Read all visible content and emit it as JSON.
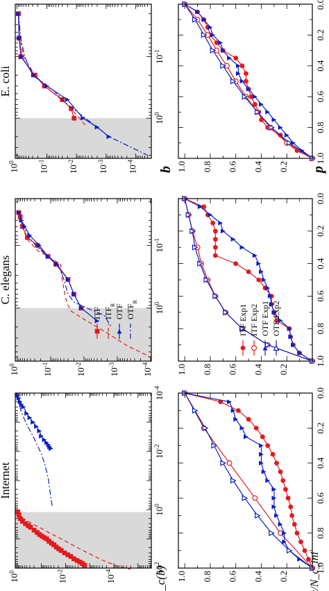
{
  "figure": {
    "rotated": "90deg counter-clockwise",
    "xlabel_top": "b",
    "xlabel_bottom": "p",
    "ylabel_top": "P_c(b)",
    "ylabel_bottom": "N_c/N_c_ini"
  },
  "chart_data": [
    {
      "id": "internet-top",
      "type": "line",
      "title": "Internet",
      "xlabel": "b",
      "ylabel": "P_c(b)",
      "xscale": "log",
      "yscale": "log",
      "xlim": [
        0.0001,
        100
      ],
      "ylim": [
        2.8e-06,
        1.2
      ],
      "xticks": [
        "10^-4",
        "10^-2",
        "10^0",
        "10^2"
      ],
      "yticks": [
        "10^0",
        "10^-2",
        "10^-4"
      ],
      "shaded_b_from": 1.2,
      "series": [
        {
          "name": "ITF",
          "color": "#e41a1c",
          "style": "solid",
          "marker": "square",
          "x": [
            1.2,
            1.5,
            2,
            2.5,
            3,
            3.5,
            4,
            5,
            6,
            7,
            8,
            9,
            10,
            12,
            14,
            16,
            19,
            22,
            25,
            30,
            35,
            40,
            48,
            55,
            62,
            70,
            80
          ],
          "y": [
            0.95,
            0.85,
            0.75,
            0.6,
            0.45,
            0.35,
            0.28,
            0.2,
            0.15,
            0.12,
            0.095,
            0.075,
            0.06,
            0.048,
            0.038,
            0.03,
            0.024,
            0.019,
            0.015,
            0.011,
            0.008,
            0.006,
            0.0045,
            0.0033,
            0.0025,
            0.002,
            0.0016
          ]
        },
        {
          "name": "ITF_R",
          "color": "#e41a1c",
          "style": "dashed",
          "x": [
            1.2,
            1.5,
            2,
            3,
            4,
            6,
            8,
            12,
            18,
            30,
            50,
            80,
            110
          ],
          "y": [
            0.95,
            0.8,
            0.55,
            0.25,
            0.12,
            0.05,
            0.025,
            0.01,
            0.004,
            0.0012,
            0.00035,
            9e-05,
            2e-05
          ]
        },
        {
          "name": "OTF",
          "color": "#0b1fc4",
          "style": "solid",
          "marker": "triangle",
          "x": [
            0.00012,
            0.00015,
            0.0002,
            0.00025,
            0.0003,
            0.0005,
            0.0007,
            0.001,
            0.0014,
            0.002,
            0.003,
            0.004,
            0.005,
            0.006,
            0.007,
            0.008
          ],
          "y": [
            0.92,
            0.85,
            0.75,
            0.65,
            0.55,
            0.4,
            0.3,
            0.22,
            0.16,
            0.12,
            0.1,
            0.075,
            0.06,
            0.05,
            0.045,
            0.04
          ]
        },
        {
          "name": "OTF_R",
          "color": "#0b1fc4",
          "style": "dashdot",
          "x": [
            0.00012,
            0.0002,
            0.0004,
            0.0008,
            0.0015,
            0.003,
            0.006,
            0.012,
            0.025,
            0.05,
            0.1,
            0.2,
            0.4,
            0.8
          ],
          "y": [
            0.95,
            0.85,
            0.7,
            0.5,
            0.35,
            0.22,
            0.15,
            0.1,
            0.075,
            0.06,
            0.05,
            0.045,
            0.04,
            0.035
          ]
        }
      ]
    },
    {
      "id": "celegans-top",
      "type": "line",
      "title": "C. elegans",
      "xlabel": "b",
      "ylabel": "",
      "xscale": "log",
      "yscale": "log",
      "xlim": [
        0.018,
        7
      ],
      "ylim": [
        9.5e-05,
        1.15
      ],
      "xticks": [
        "10^-1",
        "10^0"
      ],
      "yticks": [
        "10^0",
        "10^-1",
        "10^-2",
        "10^-3",
        "10^-4"
      ],
      "shaded_b_from": 1.0,
      "series": [
        {
          "name": "ITF",
          "color": "#e41a1c",
          "style": "solid",
          "marker": "square",
          "x": [
            0.03,
            0.035,
            0.05,
            0.075,
            0.1,
            0.15,
            0.2,
            0.35,
            0.6,
            1.0
          ],
          "y": [
            0.9,
            0.82,
            0.7,
            0.5,
            0.25,
            0.12,
            0.07,
            0.03,
            0.02,
            0.012
          ]
        },
        {
          "name": "ITF_R",
          "color": "#e41a1c",
          "style": "dashed",
          "x": [
            0.03,
            0.05,
            0.08,
            0.12,
            0.2,
            0.35,
            0.5,
            0.7,
            0.9,
            1.1,
            1.5,
            2.5,
            4,
            6
          ],
          "y": [
            0.9,
            0.72,
            0.5,
            0.25,
            0.05,
            0.045,
            0.04,
            0.035,
            0.03,
            0.025,
            0.01,
            0.002,
            0.0005,
            0.0001
          ]
        },
        {
          "name": "OTF",
          "color": "#0b1fc4",
          "style": "solid",
          "marker": "triangle",
          "x": [
            0.03,
            0.04,
            0.05,
            0.07,
            0.1,
            0.15,
            0.2,
            0.35,
            0.6,
            1.0,
            1.6
          ],
          "y": [
            0.88,
            0.75,
            0.6,
            0.42,
            0.22,
            0.12,
            0.065,
            0.03,
            0.02,
            0.012,
            0.004
          ]
        },
        {
          "name": "OTF_R",
          "color": "#0b1fc4",
          "style": "dashdot",
          "x": [
            0.03,
            0.05,
            0.08,
            0.12,
            0.2,
            0.35,
            0.6,
            0.8,
            1.0,
            1.3,
            2
          ],
          "y": [
            0.9,
            0.65,
            0.4,
            0.2,
            0.06,
            0.04,
            0.03,
            0.02,
            0.008,
            0.0025,
            0.0015
          ]
        }
      ],
      "legend": {
        "placement": "top-left",
        "entries": [
          "ITF",
          "ITF_R",
          "OTF",
          "OTF_R"
        ]
      }
    },
    {
      "id": "ecoli-top",
      "type": "line",
      "title": "E. coli",
      "xlabel": "",
      "ylabel": "",
      "xscale": "log",
      "yscale": "log",
      "xlim": [
        0.014,
        4.5
      ],
      "ylim": [
        3e-05,
        1.15
      ],
      "xticks": [
        "10^-1",
        "10^0"
      ],
      "yticks": [
        "10^0",
        "10^-1",
        "10^-2",
        "10^-3",
        "10^-4"
      ],
      "shaded_b_from": 1.0,
      "series": [
        {
          "name": "ITF",
          "color": "#e41a1c",
          "style": "solid",
          "marker": "square",
          "x": [
            0.02,
            0.05,
            0.1,
            0.2,
            0.3,
            0.5,
            0.7,
            1.0
          ],
          "y": [
            0.9,
            0.85,
            0.75,
            0.25,
            0.12,
            0.03,
            0.015,
            0.012
          ]
        },
        {
          "name": "ITF_R",
          "color": "#e41a1c",
          "style": "dashed",
          "x": [
            0.02,
            0.05,
            0.1,
            0.2,
            0.35,
            0.6,
            1.0,
            1.3
          ],
          "y": [
            0.9,
            0.8,
            0.6,
            0.25,
            0.08,
            0.02,
            0.008,
            0.005
          ]
        },
        {
          "name": "OTF",
          "color": "#0b1fc4",
          "style": "solid",
          "marker": "triangle",
          "x": [
            0.02,
            0.05,
            0.1,
            0.2,
            0.3,
            0.5,
            1.0,
            1.4,
            2
          ],
          "y": [
            0.9,
            0.85,
            0.7,
            0.28,
            0.1,
            0.02,
            0.006,
            0.002,
            0.0008
          ]
        },
        {
          "name": "OTF_R",
          "color": "#0b1fc4",
          "style": "dashdot",
          "x": [
            0.02,
            0.05,
            0.1,
            0.2,
            0.35,
            0.6,
            1.0,
            2,
            4
          ],
          "y": [
            0.9,
            0.75,
            0.55,
            0.3,
            0.06,
            0.02,
            0.005,
            0.0008,
            4e-05
          ]
        }
      ]
    },
    {
      "id": "internet-bottom",
      "type": "line",
      "xlabel": "p",
      "ylabel": "N_c/N_c_ini",
      "xlim": [
        0,
        1
      ],
      "ylim": [
        0,
        1.05
      ],
      "xticks": [
        "0.0",
        "0.2",
        "0.4",
        "0.6",
        "0.8",
        "1.0"
      ],
      "yticks": [
        "1.0",
        "0.8",
        "0.6",
        "0.4",
        "0.2"
      ],
      "series": [
        {
          "name": "ITF Exp1",
          "color": "#e41a1c",
          "style": "solid",
          "marker": "circle",
          "x": [
            0,
            0.05,
            0.1,
            0.15,
            0.2,
            0.25,
            0.3,
            0.35,
            0.4,
            0.45,
            0.5,
            0.55,
            0.6,
            0.65,
            0.7,
            0.75,
            0.8,
            0.85,
            0.9,
            0.95,
            1
          ],
          "y": [
            1,
            0.72,
            0.58,
            0.5,
            0.44,
            0.39,
            0.35,
            0.31,
            0.28,
            0.25,
            0.23,
            0.21,
            0.19,
            0.17,
            0.16,
            0.14,
            0.12,
            0.09,
            0.06,
            0.03,
            0
          ]
        },
        {
          "name": "ITF Exp2",
          "color": "#e41a1c",
          "style": "solid",
          "marker": "circle-open",
          "x": [
            0,
            0.2,
            0.4,
            0.6,
            0.8,
            1
          ],
          "y": [
            1,
            0.85,
            0.65,
            0.45,
            0.25,
            0
          ]
        },
        {
          "name": "OTF Exp1",
          "color": "#0b1fc4",
          "style": "solid",
          "marker": "triangle",
          "x": [
            0,
            0.05,
            0.1,
            0.15,
            0.2,
            0.25,
            0.3,
            0.35,
            0.4,
            0.45,
            0.5,
            0.55,
            0.6,
            0.65,
            0.7,
            0.75,
            0.8,
            0.85,
            0.9,
            0.95,
            1
          ],
          "y": [
            1,
            0.65,
            0.62,
            0.6,
            0.55,
            0.52,
            0.4,
            0.4,
            0.4,
            0.38,
            0.35,
            0.3,
            0.3,
            0.3,
            0.28,
            0.25,
            0.22,
            0.22,
            0.18,
            0.1,
            0
          ]
        },
        {
          "name": "OTF Exp2",
          "color": "#0b1fc4",
          "style": "solid",
          "marker": "triangle-open",
          "x": [
            0,
            0.1,
            0.2,
            0.3,
            0.4,
            0.5,
            0.6,
            0.7,
            0.8,
            0.9,
            1
          ],
          "y": [
            1,
            0.92,
            0.84,
            0.77,
            0.7,
            0.62,
            0.53,
            0.43,
            0.32,
            0.18,
            0
          ]
        }
      ]
    },
    {
      "id": "celegans-bottom",
      "type": "line",
      "xlabel": "p",
      "ylabel": "",
      "xlim": [
        0,
        1
      ],
      "ylim": [
        0,
        1.05
      ],
      "xticks": [
        "0.0",
        "0.2",
        "0.4",
        "0.6",
        "0.8",
        "1.0"
      ],
      "yticks": [
        "1.0",
        "0.8",
        "0.6",
        "0.4",
        "0.2"
      ],
      "series": [
        {
          "name": "ITF Exp1",
          "color": "#e41a1c",
          "style": "solid",
          "marker": "circle",
          "x": [
            0,
            0.05,
            0.1,
            0.15,
            0.2,
            0.25,
            0.3,
            0.35,
            0.4,
            0.45,
            0.5,
            0.55,
            0.6,
            0.65,
            0.7,
            0.75,
            0.8,
            0.85,
            0.9,
            0.95,
            1
          ],
          "y": [
            1,
            0.85,
            0.82,
            0.78,
            0.76,
            0.76,
            0.76,
            0.76,
            0.6,
            0.5,
            0.42,
            0.37,
            0.32,
            0.32,
            0.3,
            0.28,
            0.18,
            0.17,
            0.15,
            0.1,
            0
          ]
        },
        {
          "name": "ITF Exp2",
          "color": "#e41a1c",
          "style": "solid",
          "marker": "circle-open",
          "x": [
            0,
            0.1,
            0.2,
            0.3,
            0.4,
            0.5,
            0.6,
            0.7,
            0.8,
            0.9,
            1
          ],
          "y": [
            1,
            0.97,
            0.94,
            0.9,
            0.87,
            0.82,
            0.76,
            0.68,
            0.55,
            0.35,
            0
          ]
        },
        {
          "name": "OTF Exp1",
          "color": "#0b1fc4",
          "style": "solid",
          "marker": "triangle",
          "x": [
            0,
            0.05,
            0.1,
            0.15,
            0.2,
            0.25,
            0.3,
            0.35,
            0.4,
            0.45,
            0.5,
            0.55,
            0.6,
            0.65,
            0.7,
            0.75,
            0.8,
            0.85,
            0.9,
            0.95,
            1
          ],
          "y": [
            1,
            0.88,
            0.8,
            0.72,
            0.7,
            0.62,
            0.55,
            0.45,
            0.42,
            0.4,
            0.38,
            0.35,
            0.33,
            0.32,
            0.3,
            0.25,
            0.18,
            0.17,
            0.15,
            0.1,
            0
          ]
        },
        {
          "name": "OTF Exp2",
          "color": "#0b1fc4",
          "style": "solid",
          "marker": "triangle-open",
          "x": [
            0,
            0.1,
            0.2,
            0.3,
            0.4,
            0.5,
            0.6,
            0.7,
            0.8,
            0.9,
            1
          ],
          "y": [
            1,
            0.97,
            0.94,
            0.92,
            0.88,
            0.83,
            0.76,
            0.68,
            0.55,
            0.35,
            0
          ]
        }
      ],
      "legend": {
        "placement": "bottom-right",
        "entries": [
          "ITF Exp1",
          "ITF Exp2",
          "OTF Exp1",
          "OTF Exp2"
        ]
      }
    },
    {
      "id": "ecoli-bottom",
      "type": "line",
      "xlabel": "p",
      "ylabel": "",
      "xlim": [
        0,
        1
      ],
      "ylim": [
        0,
        1.05
      ],
      "xticks": [
        "0.0",
        "0.2",
        "0.4",
        "0.6",
        "0.8",
        "1.0"
      ],
      "yticks": [
        "1.0",
        "0.8",
        "0.6",
        "0.4",
        "0.2"
      ],
      "series": [
        {
          "name": "ITF Exp1",
          "color": "#e41a1c",
          "style": "solid",
          "marker": "circle",
          "x": [
            0,
            0.05,
            0.1,
            0.15,
            0.2,
            0.25,
            0.3,
            0.35,
            0.4,
            0.45,
            0.5,
            0.55,
            0.6,
            0.65,
            0.7,
            0.75,
            0.8,
            0.85,
            0.9,
            0.95,
            1
          ],
          "y": [
            1,
            0.9,
            0.85,
            0.82,
            0.8,
            0.75,
            0.7,
            0.6,
            0.55,
            0.52,
            0.52,
            0.5,
            0.48,
            0.45,
            0.42,
            0.4,
            0.35,
            0.25,
            0.2,
            0.12,
            0
          ]
        },
        {
          "name": "ITF Exp2",
          "color": "#e41a1c",
          "style": "solid",
          "marker": "circle-open",
          "x": [
            0,
            0.1,
            0.2,
            0.3,
            0.4,
            0.5,
            0.6,
            0.7,
            0.8,
            0.9,
            1
          ],
          "y": [
            1,
            0.9,
            0.82,
            0.75,
            0.67,
            0.6,
            0.52,
            0.43,
            0.33,
            0.2,
            0
          ]
        },
        {
          "name": "OTF Exp1",
          "color": "#0b1fc4",
          "style": "solid",
          "marker": "triangle",
          "x": [
            0,
            0.05,
            0.1,
            0.15,
            0.2,
            0.25,
            0.3,
            0.35,
            0.4,
            0.45,
            0.5,
            0.55,
            0.6,
            0.65,
            0.7,
            0.75,
            0.8,
            0.85,
            0.9,
            0.95,
            1
          ],
          "y": [
            1,
            0.9,
            0.85,
            0.8,
            0.78,
            0.72,
            0.7,
            0.65,
            0.58,
            0.58,
            0.55,
            0.5,
            0.45,
            0.4,
            0.35,
            0.3,
            0.25,
            0.2,
            0.15,
            0.08,
            0
          ]
        },
        {
          "name": "OTF Exp2",
          "color": "#0b1fc4",
          "style": "solid",
          "marker": "triangle-open",
          "x": [
            0,
            0.1,
            0.2,
            0.3,
            0.4,
            0.5,
            0.6,
            0.7,
            0.8,
            0.9,
            1
          ],
          "y": [
            1,
            0.92,
            0.85,
            0.78,
            0.7,
            0.62,
            0.53,
            0.43,
            0.32,
            0.18,
            0
          ]
        }
      ]
    }
  ]
}
